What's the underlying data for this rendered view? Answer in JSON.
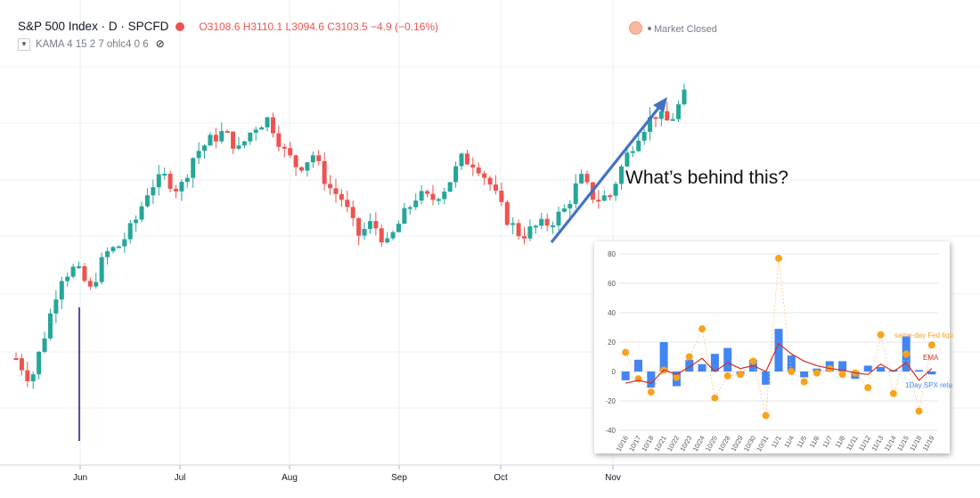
{
  "header": {
    "title": "S&P 500 Index · D · SPCFD",
    "open": "O3108.6",
    "high": "H3110.1",
    "low": "L3094.6",
    "close": "C3103.5",
    "change": "−4.9 (−0.16%)",
    "indicator": "KAMA 4 15 2 7 ohlc4 0 6"
  },
  "market_status": "Market Closed",
  "annotation": "What’s behind this?",
  "chart_data": [
    {
      "type": "candlestick",
      "x_ticks": [
        "Jun",
        "Jul",
        "Aug",
        "Sep",
        "Oct",
        "Nov"
      ],
      "colors": {
        "up": "#26a69a",
        "down": "#ef5350",
        "grid": "#eef0f4",
        "arrow": "#4472c4"
      },
      "grid": true,
      "approx_close_path": [
        3000,
        2950,
        3060,
        3180,
        3200,
        3150,
        3230,
        3250,
        3300,
        3380,
        3400,
        3370,
        3450,
        3480,
        3500,
        3460,
        3510,
        3530,
        3460,
        3420,
        3450,
        3380,
        3350,
        3270,
        3300,
        3250,
        3310,
        3360,
        3350,
        3380,
        3440,
        3430,
        3380,
        3310,
        3270,
        3290,
        3300,
        3330,
        3400,
        3350,
        3360,
        3440,
        3500,
        3540,
        3520,
        3580
      ]
    },
    {
      "type": "bar",
      "title": "",
      "categories": [
        "10/16",
        "10/17",
        "10/18",
        "10/21",
        "10/22",
        "10/23",
        "10/24",
        "10/25",
        "10/28",
        "10/29",
        "10/30",
        "10/31",
        "11/1",
        "11/4",
        "11/5",
        "11/6",
        "11/7",
        "11/8",
        "11/11",
        "11/12",
        "11/13",
        "11/14",
        "11/15",
        "11/18",
        "11/19"
      ],
      "ylim": [
        -40,
        80
      ],
      "y_ticks": [
        80,
        60,
        40,
        20,
        0,
        -20,
        -40
      ],
      "series": [
        {
          "name": "1Day SPX retu",
          "type": "bar",
          "color": "#4285f4",
          "values": [
            -6,
            8,
            -11,
            20,
            -10,
            8,
            5,
            12,
            16,
            -2,
            8,
            -9,
            29,
            11,
            -4,
            2,
            7,
            7,
            -5,
            4,
            3,
            1,
            24,
            1,
            -2
          ]
        },
        {
          "name": "same-day Fed liqu",
          "type": "scatter",
          "color": "#f9a21b",
          "values": [
            13,
            -5,
            -14,
            1,
            -4,
            10,
            29,
            -18,
            -3,
            -2,
            7,
            -30,
            77,
            0,
            -7,
            -1,
            2,
            -2,
            -1,
            -11,
            25,
            -15,
            12,
            -27,
            18
          ]
        },
        {
          "name": "EMA",
          "type": "line",
          "color": "#d62d20",
          "values": [
            -8,
            -6,
            -8,
            1,
            -2,
            3,
            9,
            0,
            6,
            2,
            4,
            0,
            19,
            12,
            7,
            4,
            2,
            1,
            -1,
            -2,
            5,
            0,
            6,
            -6,
            2
          ]
        }
      ]
    }
  ]
}
